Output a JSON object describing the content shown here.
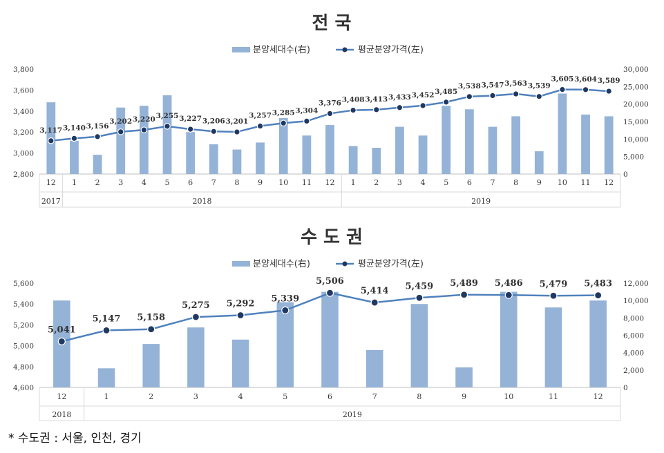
{
  "footnote": "* 수도권 : 서울, 인천, 경기",
  "chart_data": [
    {
      "type": "bar+line",
      "title": "전  국",
      "legend": [
        "분양세대수(右)",
        "평균분양가격(左)"
      ],
      "legend_position": "top-center",
      "x_labels": [
        "12",
        "1",
        "2",
        "3",
        "4",
        "5",
        "6",
        "7",
        "8",
        "9",
        "10",
        "11",
        "12",
        "1",
        "2",
        "3",
        "4",
        "5",
        "6",
        "7",
        "8",
        "9",
        "10",
        "11",
        "12"
      ],
      "year_groups": [
        {
          "label": "2017",
          "count": 1
        },
        {
          "label": "2018",
          "count": 12
        },
        {
          "label": "2019",
          "count": 12
        }
      ],
      "left_axis": {
        "ylim": [
          2800,
          3800
        ],
        "ticks": [
          "2,800",
          "3,000",
          "3,200",
          "3,400",
          "3,600",
          "3,800"
        ]
      },
      "right_axis": {
        "ylim": [
          0,
          30000
        ],
        "ticks": [
          "0",
          "5,000",
          "10,000",
          "15,000",
          "20,000",
          "25,000",
          "30,000"
        ]
      },
      "series": [
        {
          "name": "분양세대수(右)",
          "type": "bar",
          "axis": "right",
          "color": "#95B3D7",
          "values": [
            20500,
            9500,
            5500,
            19000,
            19500,
            22500,
            12000,
            8500,
            7000,
            9000,
            16000,
            11000,
            14000,
            8000,
            7500,
            13500,
            11000,
            19500,
            18500,
            13500,
            16500,
            6500,
            23000,
            17000,
            16500
          ]
        },
        {
          "name": "평균분양가격(左)",
          "type": "line",
          "axis": "left",
          "color": "#4F81BD",
          "marker_color": "#1F3864",
          "values": [
            3117,
            3140,
            3156,
            3202,
            3220,
            3255,
            3227,
            3206,
            3201,
            3257,
            3285,
            3304,
            3376,
            3408,
            3413,
            3433,
            3452,
            3485,
            3538,
            3547,
            3563,
            3539,
            3605,
            3604,
            3589
          ],
          "labels": [
            "3,117",
            "3,140",
            "3,156",
            "3,202",
            "3,220",
            "3,255",
            "3,227",
            "3,206",
            "3,201",
            "3,257",
            "3,285",
            "3,304",
            "3,376",
            "3,408",
            "3,413",
            "3,433",
            "3,452",
            "3,485",
            "3,538",
            "3,547",
            "3,563",
            "3,539",
            "3,605",
            "3,604",
            "3,589"
          ]
        }
      ]
    },
    {
      "type": "bar+line",
      "title": "수 도 권",
      "legend": [
        "분양세대수(右)",
        "평균분양가격(左)"
      ],
      "legend_position": "top-center",
      "x_labels": [
        "12",
        "1",
        "2",
        "3",
        "4",
        "5",
        "6",
        "7",
        "8",
        "9",
        "10",
        "11",
        "12"
      ],
      "year_groups": [
        {
          "label": "2018",
          "count": 1
        },
        {
          "label": "2019",
          "count": 12
        }
      ],
      "left_axis": {
        "ylim": [
          4600,
          5600
        ],
        "ticks": [
          "4,600",
          "4,800",
          "5,000",
          "5,200",
          "5,400",
          "5,600"
        ]
      },
      "right_axis": {
        "ylim": [
          0,
          12000
        ],
        "ticks": [
          "0",
          "2,000",
          "4,000",
          "6,000",
          "8,000",
          "10,000",
          "12,000"
        ]
      },
      "series": [
        {
          "name": "분양세대수(右)",
          "type": "bar",
          "axis": "right",
          "color": "#95B3D7",
          "values": [
            10000,
            2200,
            5000,
            6900,
            5500,
            9800,
            11000,
            4300,
            9600,
            2300,
            11000,
            9200,
            10000
          ]
        },
        {
          "name": "평균분양가격(左)",
          "type": "line",
          "axis": "left",
          "color": "#4F81BD",
          "marker_color": "#1F3864",
          "values": [
            5041,
            5147,
            5158,
            5275,
            5292,
            5339,
            5506,
            5414,
            5459,
            5489,
            5486,
            5479,
            5483
          ],
          "labels": [
            "5,041",
            "5,147",
            "5,158",
            "5,275",
            "5,292",
            "5,339",
            "5,506",
            "5,414",
            "5,459",
            "5,489",
            "5,486",
            "5,479",
            "5,483"
          ]
        }
      ]
    }
  ]
}
